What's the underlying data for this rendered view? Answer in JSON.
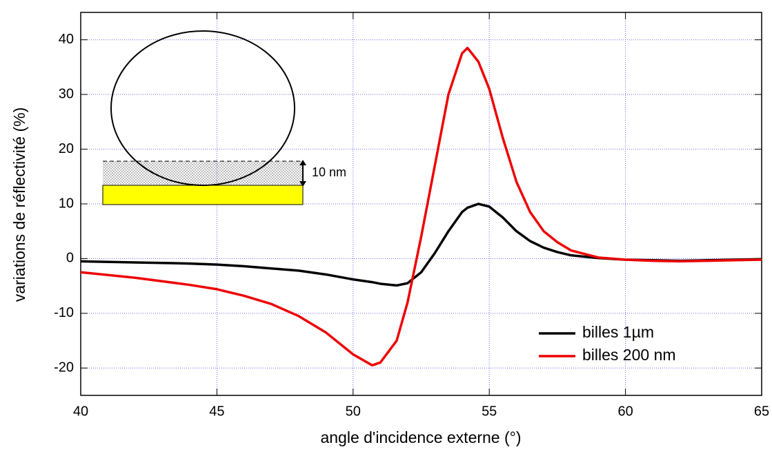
{
  "chart_data": {
    "type": "line",
    "xlabel": "angle d'incidence externe (°)",
    "ylabel": "variations de réflectivité (%)",
    "x": [
      40,
      42,
      44,
      45,
      46,
      47,
      48,
      49,
      50,
      50.7,
      51,
      51.6,
      52,
      52.5,
      53,
      53.5,
      54,
      54.2,
      54.6,
      55,
      55.5,
      56,
      56.5,
      57,
      57.5,
      58,
      59,
      60,
      61,
      62,
      63,
      64,
      65
    ],
    "series": [
      {
        "name": "billes 1µm",
        "color": "#000000",
        "values": [
          -0.5,
          -0.7,
          -0.9,
          -1.1,
          -1.4,
          -1.8,
          -2.2,
          -2.9,
          -3.8,
          -4.3,
          -4.6,
          -4.9,
          -4.5,
          -2.5,
          1,
          5,
          8.5,
          9.3,
          10,
          9.5,
          7.5,
          5,
          3.2,
          2,
          1.2,
          0.6,
          0.1,
          -0.2,
          -0.3,
          -0.4,
          -0.3,
          -0.2,
          -0.1
        ]
      },
      {
        "name": "billes 200 nm",
        "color": "#ee0000",
        "values": [
          -2.5,
          -3.5,
          -4.8,
          -5.6,
          -6.8,
          -8.3,
          -10.5,
          -13.5,
          -17.5,
          -19.5,
          -19,
          -15,
          -8,
          4,
          17,
          30,
          37.5,
          38.5,
          36,
          31,
          22,
          14,
          8.5,
          5,
          3,
          1.5,
          0.2,
          -0.2,
          -0.4,
          -0.5,
          -0.4,
          -0.3,
          -0.2
        ]
      }
    ],
    "xlim": [
      40,
      65
    ],
    "xticks": [
      40,
      45,
      50,
      55,
      60,
      65
    ],
    "ylim": [
      -25,
      45
    ],
    "yticks": [
      -20,
      -10,
      0,
      10,
      20,
      30,
      40
    ],
    "grid": true,
    "legend": "lower right",
    "annotations": [
      "10 nm"
    ]
  }
}
